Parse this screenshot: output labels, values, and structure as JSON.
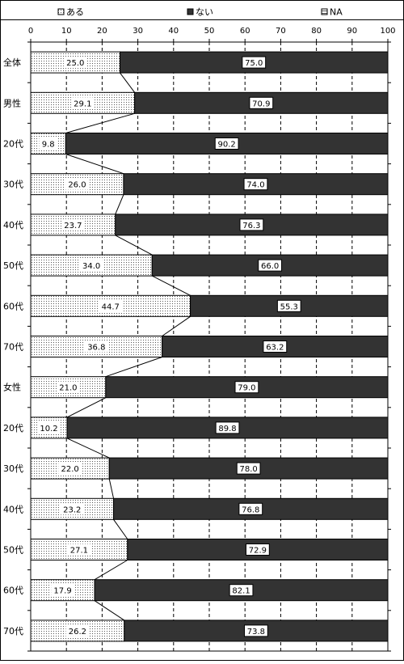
{
  "chart_data": {
    "type": "bar",
    "orientation": "horizontal",
    "stacked": true,
    "normalized_percent": true,
    "legend_position": "top",
    "legend": [
      {
        "key": "aru",
        "label": "ある",
        "color": "#ffffff",
        "pattern": "dots"
      },
      {
        "key": "nai",
        "label": "ない",
        "color": "#333333",
        "pattern": "solid"
      },
      {
        "key": "na",
        "label": "NA",
        "color": "#ffffff",
        "pattern": "hatch"
      }
    ],
    "x_ticks": [
      "0",
      "10",
      "20",
      "30",
      "40",
      "50",
      "60",
      "70",
      "80",
      "90",
      "100"
    ],
    "xlim": [
      0,
      100
    ],
    "grid": "vertical-dashed",
    "categories": [
      "全体",
      "男性",
      "20代",
      "30代",
      "40代",
      "50代",
      "60代",
      "70代",
      "女性",
      "20代",
      "30代",
      "40代",
      "50代",
      "60代",
      "70代"
    ],
    "series": [
      {
        "name": "ある",
        "values": [
          25.0,
          29.1,
          9.8,
          26.0,
          23.7,
          34.0,
          44.7,
          36.8,
          21.0,
          10.2,
          22.0,
          23.2,
          27.1,
          17.9,
          26.2
        ]
      },
      {
        "name": "ない",
        "values": [
          75.0,
          70.9,
          90.2,
          74.0,
          76.3,
          66.0,
          55.3,
          63.2,
          79.0,
          89.8,
          78.0,
          76.8,
          72.9,
          82.1,
          73.8
        ]
      },
      {
        "name": "NA",
        "values": [
          0,
          0,
          0,
          0,
          0,
          0,
          0,
          0,
          0,
          0,
          0,
          0,
          0,
          0,
          0
        ]
      }
    ],
    "value_labels": {
      "aru": [
        "25.0",
        "29.1",
        "9.8",
        "26.0",
        "23.7",
        "34.0",
        "44.7",
        "36.8",
        "21.0",
        "10.2",
        "22.0",
        "23.2",
        "27.1",
        "17.9",
        "26.2"
      ],
      "nai": [
        "75.0",
        "70.9",
        "90.2",
        "74.0",
        "76.3",
        "66.0",
        "55.3",
        "63.2",
        "79.0",
        "89.8",
        "78.0",
        "76.8",
        "72.9",
        "82.1",
        "73.8"
      ]
    },
    "colors": {
      "dark": "#333333",
      "border": "#000000",
      "dot": "#555555",
      "grid": "#000000"
    }
  }
}
